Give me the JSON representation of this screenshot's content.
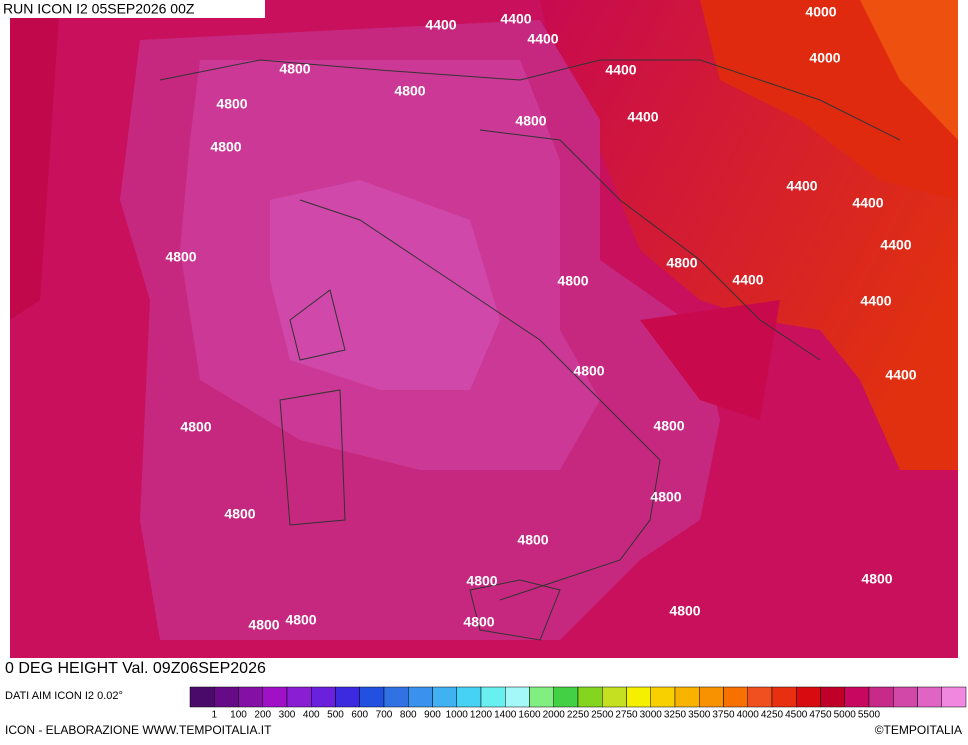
{
  "header": {
    "title": "RUN ICON I2 05SEP2026 00Z"
  },
  "contour_labels": [
    4400,
    4400,
    4400,
    4400,
    4400,
    4400,
    4400,
    4400,
    4400,
    4400,
    4400,
    4000,
    4000,
    4800,
    4800,
    4800,
    4800,
    4800,
    4800,
    4800,
    4800,
    4800,
    4800,
    4800,
    4800,
    4800,
    4800,
    4800,
    4800,
    4800,
    4800,
    4800,
    4800
  ],
  "footer": {
    "title": "0 DEG HEIGHT Val. 09Z06SEP2026",
    "source": "DATI AIM ICON I2 0.02°",
    "credit": "ICON - ELABORAZIONE WWW.TEMPOITALIA.IT",
    "brand": "©TEMPOITALIA"
  },
  "legend": {
    "colors": [
      "#4a0a6a",
      "#660a88",
      "#8410a6",
      "#a010c6",
      "#8a1ed2",
      "#6a20dc",
      "#3c2ae0",
      "#2250e0",
      "#3072e4",
      "#3a92ee",
      "#40b2f2",
      "#46d2f4",
      "#68f0f0",
      "#a4f8f8",
      "#80ee80",
      "#44d044",
      "#84d420",
      "#c4e020",
      "#f4f000",
      "#f8d000",
      "#f8b200",
      "#f89200",
      "#f87000",
      "#f05020",
      "#e83010",
      "#d80c10",
      "#c00028",
      "#c80860",
      "#c82a8a",
      "#d248a8",
      "#e064c4",
      "#f088e0"
    ],
    "labels": [
      "1",
      "100",
      "200",
      "300",
      "400",
      "500",
      "600",
      "700",
      "800",
      "900",
      "1000",
      "1200",
      "1400",
      "1600",
      "2000",
      "2250",
      "2500",
      "2750",
      "3000",
      "3250",
      "3500",
      "3750",
      "4000",
      "4250",
      "4500",
      "4750",
      "5000",
      "5500"
    ]
  }
}
